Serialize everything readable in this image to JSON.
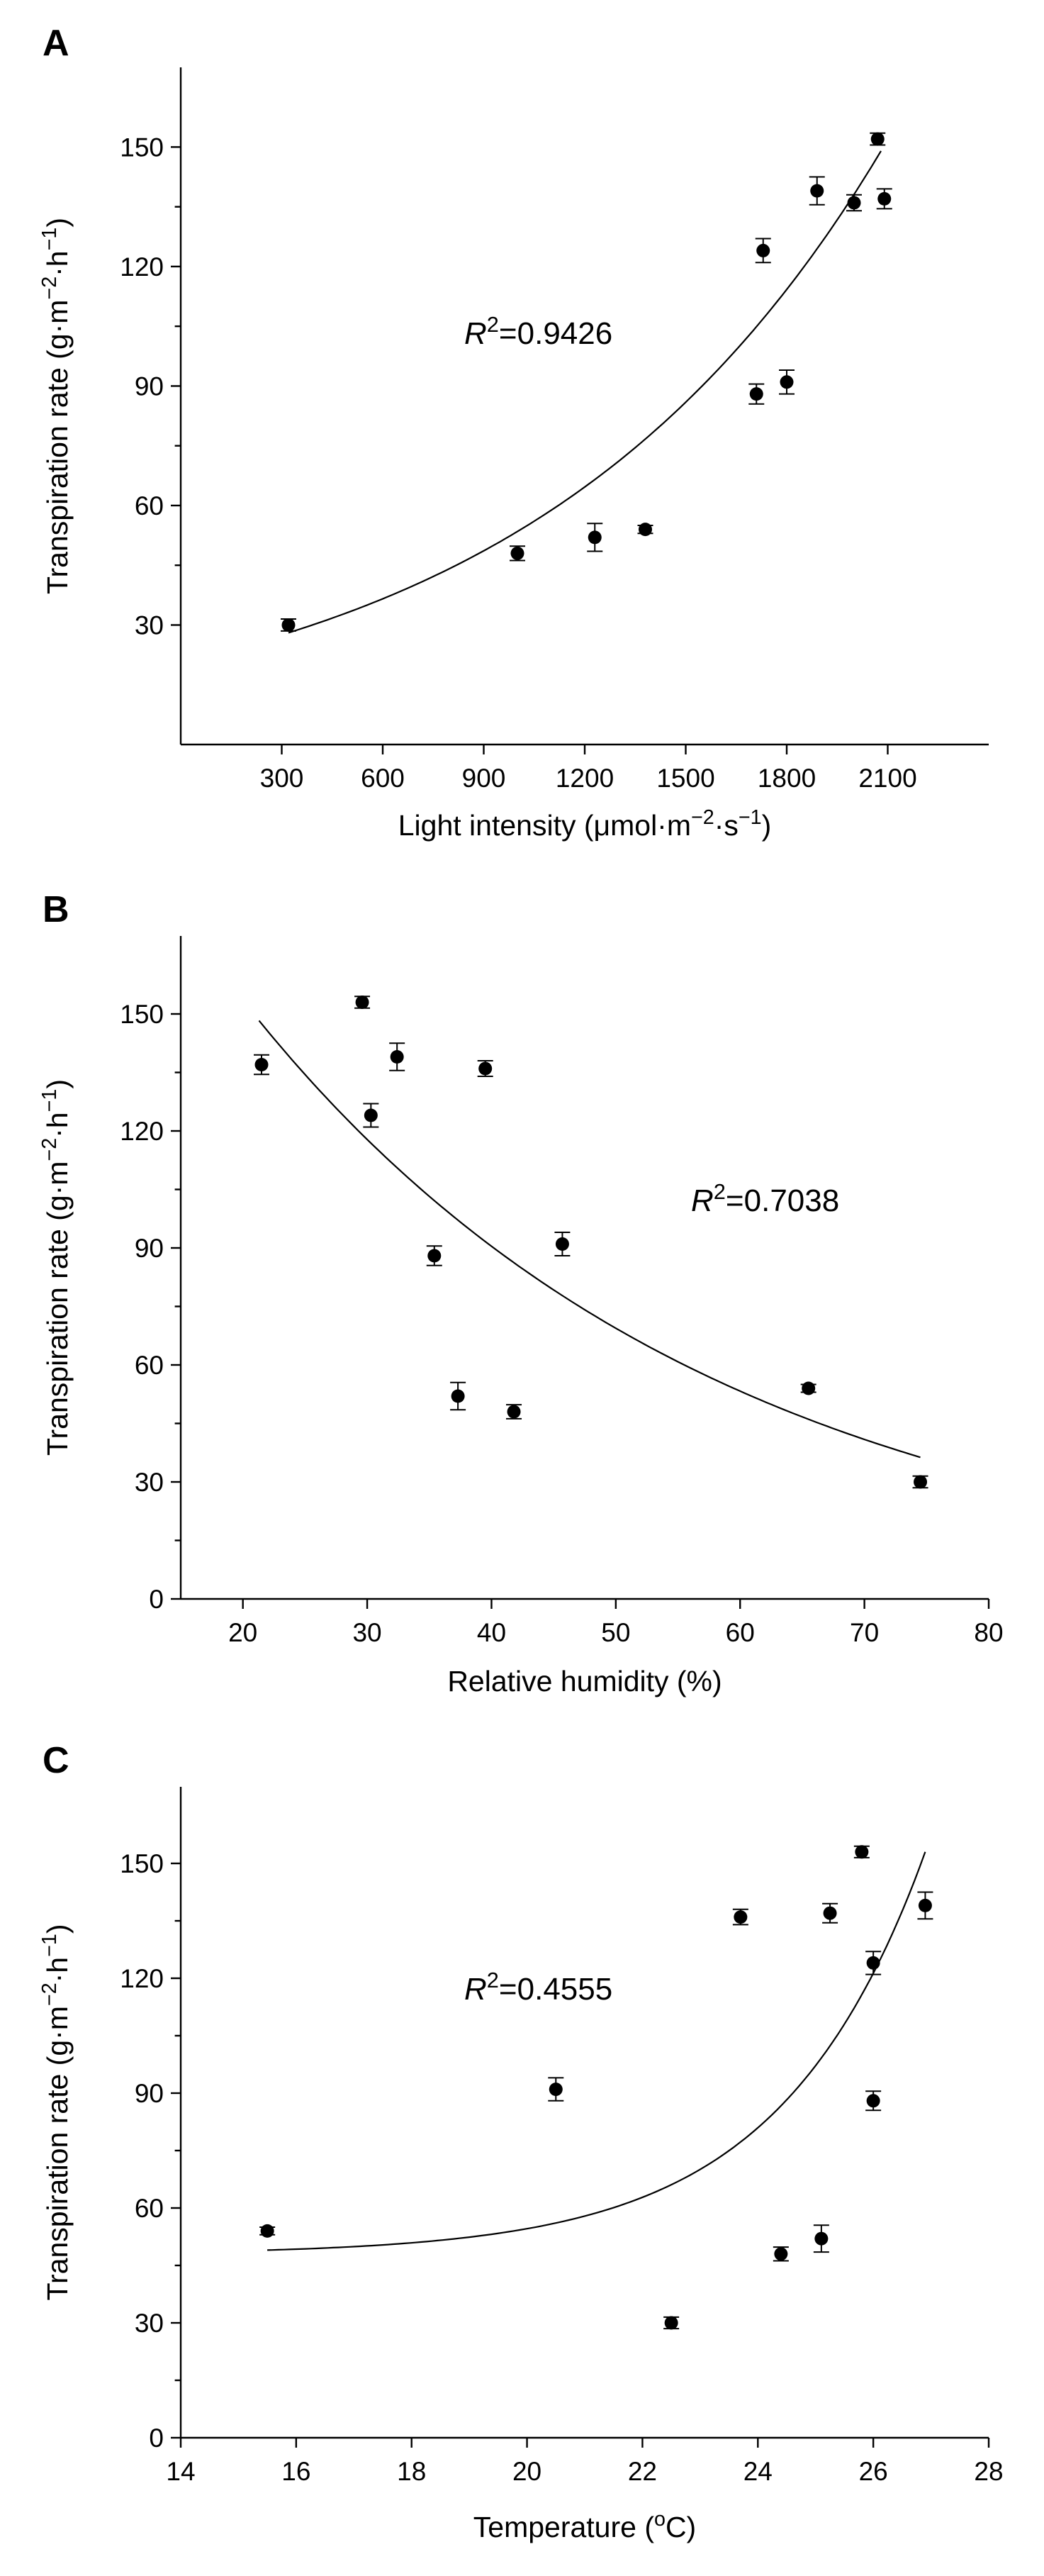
{
  "chart_data": [
    {
      "type": "scatter",
      "panel_label": "A",
      "xlabel_parts": [
        "Light intensity (μmol·m",
        "−2",
        "·s",
        "−1",
        ")"
      ],
      "ylabel_parts": [
        "Transpiration rate (g·m",
        "−2",
        "·h",
        "−1",
        ")"
      ],
      "r2_parts": [
        "R",
        "2",
        "=0.9426"
      ],
      "xlim": [
        0,
        2400
      ],
      "ylim": [
        0,
        170
      ],
      "xticks": [
        300,
        600,
        900,
        1200,
        1500,
        1800,
        2100
      ],
      "yticks": [
        30,
        60,
        90,
        120,
        150
      ],
      "grid": false,
      "points": [
        {
          "x": 320,
          "y": 30,
          "err": 1.5
        },
        {
          "x": 1000,
          "y": 48,
          "err": 1.8
        },
        {
          "x": 1230,
          "y": 52,
          "err": 3.5
        },
        {
          "x": 1380,
          "y": 54,
          "err": 1.0
        },
        {
          "x": 1710,
          "y": 88,
          "err": 2.5
        },
        {
          "x": 1730,
          "y": 124,
          "err": 3.0
        },
        {
          "x": 1800,
          "y": 91,
          "err": 3.0
        },
        {
          "x": 1890,
          "y": 139,
          "err": 3.5
        },
        {
          "x": 2000,
          "y": 136,
          "err": 2.0
        },
        {
          "x": 2070,
          "y": 152,
          "err": 1.5
        },
        {
          "x": 2090,
          "y": 137,
          "err": 2.5
        }
      ],
      "fit": {
        "model": "exponential",
        "a": 20.7,
        "b": 0.000949,
        "x_range": [
          320,
          2080
        ]
      }
    },
    {
      "type": "scatter",
      "panel_label": "B",
      "xlabel_parts": [
        "Relative humidity (%)"
      ],
      "ylabel_parts": [
        "Transpiration rate (g·m",
        "−2",
        "·h",
        "−1",
        ")"
      ],
      "r2_parts": [
        "R",
        "2",
        "=0.7038"
      ],
      "xlim": [
        15,
        80
      ],
      "ylim": [
        0,
        170
      ],
      "xticks": [
        20,
        30,
        40,
        50,
        60,
        70,
        80
      ],
      "yticks": [
        0,
        30,
        60,
        90,
        120,
        150
      ],
      "grid": false,
      "points": [
        {
          "x": 21.5,
          "y": 137,
          "err": 2.5
        },
        {
          "x": 29.6,
          "y": 153,
          "err": 1.5
        },
        {
          "x": 30.3,
          "y": 124,
          "err": 3.0
        },
        {
          "x": 32.4,
          "y": 139,
          "err": 3.5
        },
        {
          "x": 35.4,
          "y": 88,
          "err": 2.5
        },
        {
          "x": 37.3,
          "y": 52,
          "err": 3.5
        },
        {
          "x": 39.5,
          "y": 136,
          "err": 2.0
        },
        {
          "x": 41.8,
          "y": 48,
          "err": 1.8
        },
        {
          "x": 45.7,
          "y": 91,
          "err": 3.0
        },
        {
          "x": 65.5,
          "y": 54,
          "err": 1.0
        },
        {
          "x": 74.5,
          "y": 30,
          "err": 1.5
        }
      ],
      "fit": {
        "model": "exponential",
        "a": 260.5,
        "b": -0.02645,
        "x_range": [
          21.3,
          74.5
        ]
      }
    },
    {
      "type": "scatter",
      "panel_label": "C",
      "xlabel_parts": [
        "Temperature (",
        "o",
        "C)"
      ],
      "ylabel_parts": [
        "Transpiration rate (g·m",
        "−2",
        "·h",
        "−1",
        ")"
      ],
      "r2_parts": [
        "R",
        "2",
        "=0.4555"
      ],
      "xlim": [
        14,
        28
      ],
      "ylim": [
        0,
        170
      ],
      "xticks": [
        14,
        16,
        18,
        20,
        22,
        24,
        26,
        28
      ],
      "yticks": [
        0,
        30,
        60,
        90,
        120,
        150
      ],
      "grid": false,
      "points": [
        {
          "x": 15.5,
          "y": 54,
          "err": 1.0
        },
        {
          "x": 20.5,
          "y": 91,
          "err": 3.0
        },
        {
          "x": 22.5,
          "y": 30,
          "err": 1.5
        },
        {
          "x": 23.7,
          "y": 136,
          "err": 2.0
        },
        {
          "x": 24.4,
          "y": 48,
          "err": 1.8
        },
        {
          "x": 25.1,
          "y": 52,
          "err": 3.5
        },
        {
          "x": 25.25,
          "y": 137,
          "err": 2.5
        },
        {
          "x": 25.8,
          "y": 153,
          "err": 1.5
        },
        {
          "x": 26.0,
          "y": 124,
          "err": 3.0
        },
        {
          "x": 26.0,
          "y": 88,
          "err": 2.5
        },
        {
          "x": 26.9,
          "y": 139,
          "err": 3.5
        }
      ],
      "fit": {
        "model": "convex",
        "x_range": [
          15.5,
          26.9
        ],
        "y_start": 49,
        "y_end": 153,
        "shape": 0.22
      }
    }
  ]
}
